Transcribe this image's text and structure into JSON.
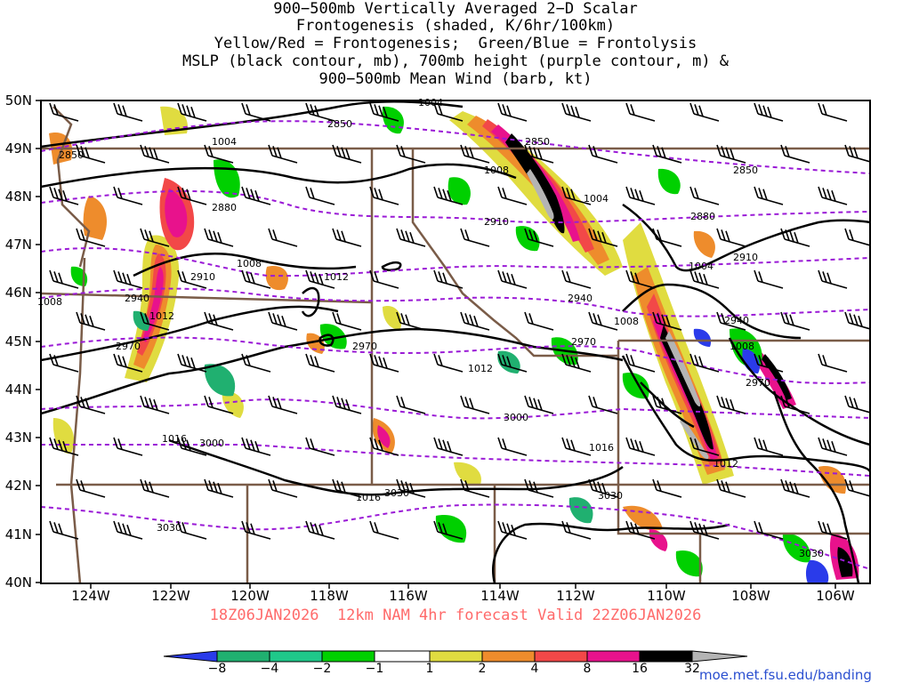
{
  "title": {
    "lines": [
      "900−500mb Vertically Averaged 2−D Scalar",
      "Frontogenesis (shaded, K/6hr/100km)",
      "Yellow/Red = Frontogenesis;  Green/Blue = Frontolysis",
      "MSLP (black contour, mb), 700mb height (purple contour, m) &",
      "900−500mb Mean Wind (barb, kt)"
    ]
  },
  "axes": {
    "lat_labels": [
      "50N",
      "49N",
      "48N",
      "47N",
      "46N",
      "45N",
      "44N",
      "43N",
      "42N",
      "41N",
      "40N"
    ],
    "lon_labels": [
      "124W",
      "122W",
      "120W",
      "118W",
      "116W",
      "114W",
      "112W",
      "110W",
      "108W",
      "106W"
    ]
  },
  "contour_labels": {
    "mslp": [
      "1004",
      "1004",
      "1008",
      "1004",
      "1008",
      "1012",
      "1012",
      "1008",
      "1008",
      "1012",
      "1012",
      "1016",
      "1016",
      "1016",
      "1012",
      "1004",
      "1008",
      "1004"
    ],
    "height": [
      "2850",
      "2850",
      "2850",
      "2850",
      "2880",
      "2880",
      "2910",
      "2910",
      "2910",
      "2940",
      "2940",
      "2940",
      "2970",
      "2970",
      "2970",
      "2970",
      "3000",
      "3000",
      "3030",
      "3030",
      "3030",
      "3030"
    ]
  },
  "valid_text": "18Z06JAN2026  12km NAM 4hr forecast Valid 22Z06JAN2026",
  "colorbar": {
    "labels": [
      "−8",
      "−4",
      "−2",
      "−1",
      "1",
      "2",
      "4",
      "8",
      "16",
      "32"
    ],
    "colors": {
      "blue": "#2a3bea",
      "blue_green": "#20b070",
      "green": "#00d000",
      "white": "#ffffff",
      "yellow": "#e0dc40",
      "orange": "#ee8c2c",
      "red": "#f24848",
      "magenta": "#e8128c",
      "black": "#000000",
      "gray": "#b4b4b4"
    }
  },
  "credit": "moe.met.fsu.edu/banding",
  "colors": {
    "mslp_contour": "#000000",
    "height_contour": "#9a1ad6",
    "borders": "#7a5c48",
    "title_accent": "#ff6a6a",
    "credit_link": "#2a4fd0"
  }
}
